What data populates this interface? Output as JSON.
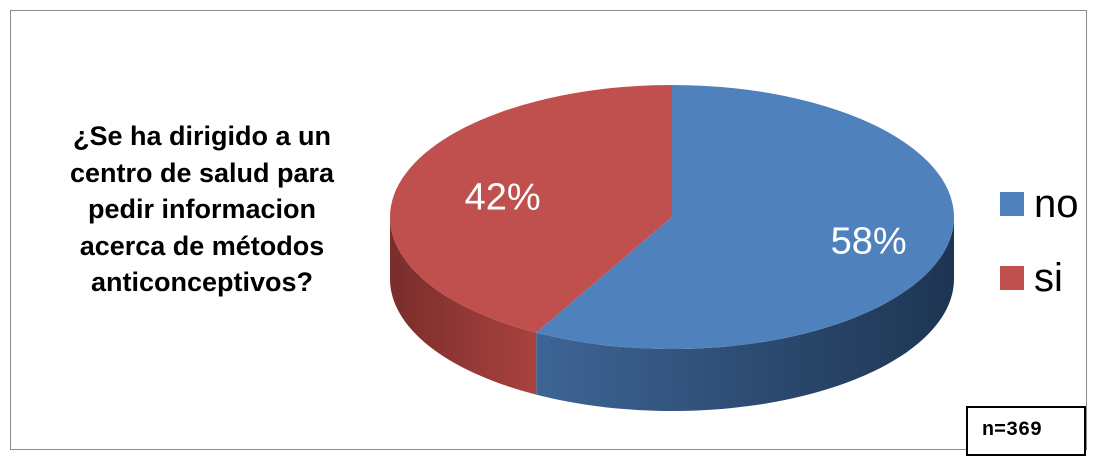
{
  "chart_data": {
    "type": "pie",
    "title_lines": [
      "¿Se ha dirigido a un",
      "centro de salud para",
      "pedir informacion",
      "acerca de métodos",
      "anticonceptivos?"
    ],
    "categories": [
      "no",
      "si"
    ],
    "values": [
      58,
      42
    ],
    "data_labels": [
      "58%",
      "42%"
    ],
    "colors": [
      "#4f81bd",
      "#c0504d"
    ],
    "legend_position": "right",
    "style": "3d"
  },
  "note": "n=369"
}
